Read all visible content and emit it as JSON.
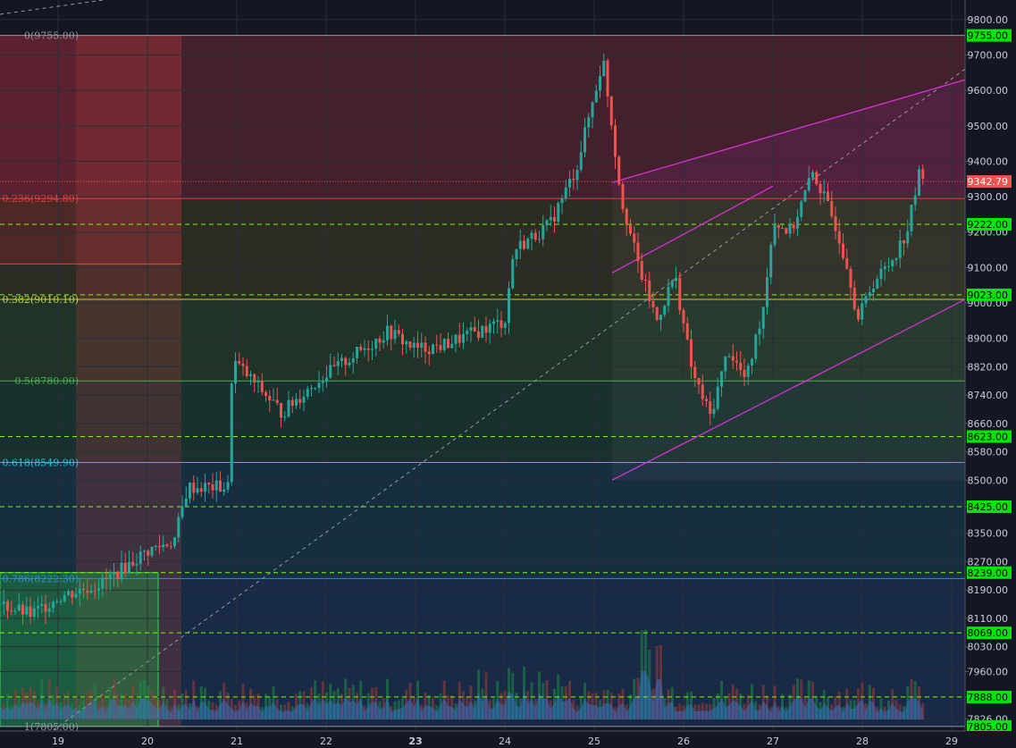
{
  "chart_data": {
    "type": "candlestick",
    "y_range": [
      7792,
      9855
    ],
    "x_range": [
      18.35,
      29.15
    ],
    "x_ticks": [
      {
        "value": 19,
        "label": "19",
        "bold": false
      },
      {
        "value": 20,
        "label": "20",
        "bold": false
      },
      {
        "value": 21,
        "label": "21",
        "bold": false
      },
      {
        "value": 22,
        "label": "22",
        "bold": false
      },
      {
        "value": 23,
        "label": "23",
        "bold": true
      },
      {
        "value": 24,
        "label": "24",
        "bold": false
      },
      {
        "value": 25,
        "label": "25",
        "bold": false
      },
      {
        "value": 26,
        "label": "26",
        "bold": false
      },
      {
        "value": 27,
        "label": "27",
        "bold": false
      },
      {
        "value": 28,
        "label": "28",
        "bold": false
      },
      {
        "value": 29,
        "label": "29",
        "bold": false
      }
    ],
    "y_ticks": [
      "9800.00",
      "9700.00",
      "9600.00",
      "9500.00",
      "9400.00",
      "9300.00",
      "9200.00",
      "9100.00",
      "9000.00",
      "8900.00",
      "8820.00",
      "8740.00",
      "8660.00",
      "8580.00",
      "8500.00",
      "8425.00",
      "8350.00",
      "8270.00",
      "8190.00",
      "8110.00",
      "8030.00",
      "7960.00",
      "7888.00",
      "7826.00"
    ],
    "current_price": {
      "value": 9342.79,
      "label": "9342.79",
      "color": "#ef5350"
    },
    "price_levels": [
      {
        "value": 9755,
        "label": "9755.00",
        "style": "solid"
      },
      {
        "value": 9222,
        "label": "9222.00",
        "style": "dashed"
      },
      {
        "value": 9023,
        "label": "9023.00",
        "style": "dashed"
      },
      {
        "value": 8623,
        "label": "8623.00",
        "style": "dashed"
      },
      {
        "value": 8425,
        "label": "8425.00",
        "style": "dashed"
      },
      {
        "value": 8239,
        "label": "8239.00",
        "style": "dashed"
      },
      {
        "value": 8069,
        "label": "8069.00",
        "style": "dashed"
      },
      {
        "value": 7888,
        "label": "7888.00",
        "style": "dashed"
      },
      {
        "value": 7805,
        "label": "7805.00",
        "style": "solid"
      }
    ],
    "fib_levels": [
      {
        "ratio": "0",
        "value": 9755,
        "label": "0(9755.00)",
        "color": "#9598a1"
      },
      {
        "ratio": "0.236",
        "value": 9294.8,
        "label": "0.236(9294.80)",
        "color": "#e0413f"
      },
      {
        "ratio": "0.382",
        "value": 9010.1,
        "label": "0.382(9010.10)",
        "color": "#b7d53a"
      },
      {
        "ratio": "0.5",
        "value": 8780,
        "label": "0.5(8780.00)",
        "color": "#4caf50"
      },
      {
        "ratio": "0.618",
        "value": 8549.9,
        "label": "0.618(8549.90)",
        "color": "#26c6da"
      },
      {
        "ratio": "0.786",
        "value": 8222.3,
        "label": "0.786(8222.30)",
        "color": "#2f8fd6"
      },
      {
        "ratio": "1",
        "value": 7805,
        "label": "1(7805.00)",
        "color": "#9598a1"
      }
    ],
    "channel": {
      "upper": [
        [
          25.2,
          9340
        ],
        [
          29.15,
          9630
        ]
      ],
      "lower": [
        [
          25.2,
          8500
        ],
        [
          29.15,
          9010
        ]
      ],
      "mid_upper": [
        [
          25.2,
          9085
        ],
        [
          27.0,
          9330
        ]
      ],
      "color": "#d633d6"
    },
    "trend_line": [
      [
        18.95,
        7795
      ],
      [
        29.15,
        9660
      ]
    ],
    "colors": {
      "up": "#26a69a",
      "down": "#ef5350",
      "badge": "#00e600",
      "level": "#7cfc00"
    }
  }
}
